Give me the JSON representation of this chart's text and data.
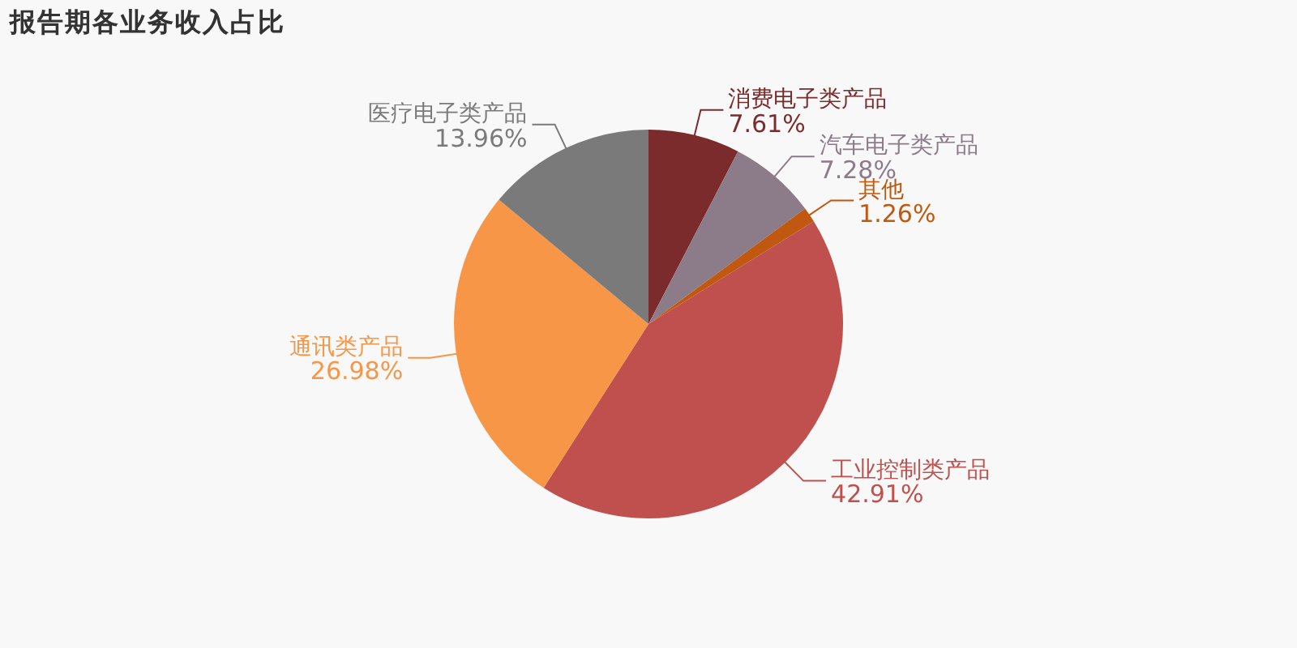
{
  "chart_data": {
    "type": "pie",
    "title": "报告期各业务收入占比",
    "categories": [
      "消费电子类产品",
      "汽车电子类产品",
      "其他",
      "工业控制类产品",
      "通讯类产品",
      "医疗电子类产品"
    ],
    "values": [
      7.61,
      7.28,
      1.26,
      42.91,
      26.98,
      13.96
    ],
    "colors": [
      "#7b2b2b",
      "#8c7b89",
      "#c0590f",
      "#c0504d",
      "#f79646",
      "#7a7a7a"
    ],
    "value_labels": [
      "7.61%",
      "7.28%",
      "1.26%",
      "42.91%",
      "26.98%",
      "13.96%"
    ],
    "legend": false
  }
}
